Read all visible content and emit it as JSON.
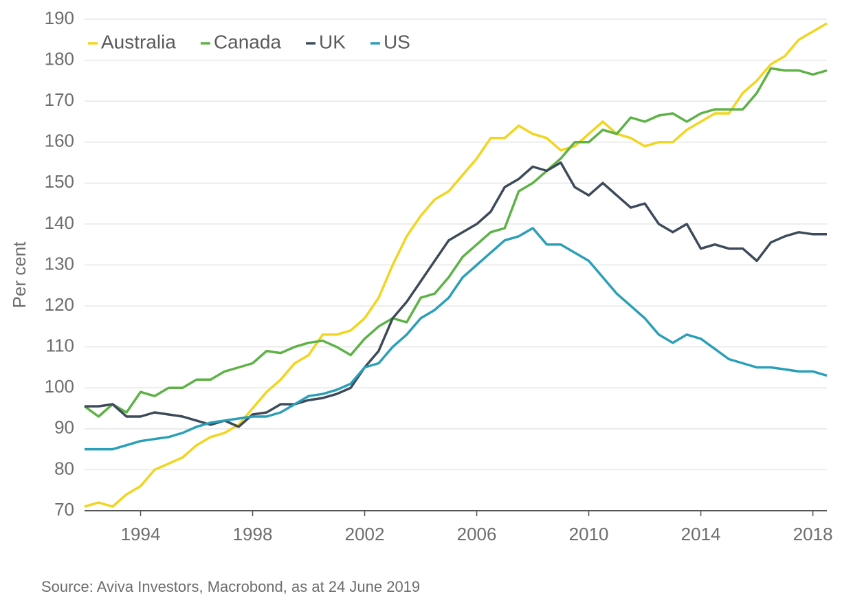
{
  "chart_data": {
    "type": "line",
    "y_label": "Per cent",
    "source": "Source: Aviva Investors, Macrobond, as at 24 June 2019",
    "x": [
      1992,
      1992.5,
      1993,
      1993.5,
      1994,
      1994.5,
      1995,
      1995.5,
      1996,
      1996.5,
      1997,
      1997.5,
      1998,
      1998.5,
      1999,
      1999.5,
      2000,
      2000.5,
      2001,
      2001.5,
      2002,
      2002.5,
      2003,
      2003.5,
      2004,
      2004.5,
      2005,
      2005.5,
      2006,
      2006.5,
      2007,
      2007.5,
      2008,
      2008.5,
      2009,
      2009.5,
      2010,
      2010.5,
      2011,
      2011.5,
      2012,
      2012.5,
      2013,
      2013.5,
      2014,
      2014.5,
      2015,
      2015.5,
      2016,
      2016.5,
      2017,
      2017.5,
      2018,
      2018.5
    ],
    "series": [
      {
        "name": "Australia",
        "color": "#f2d51e",
        "values": [
          71,
          72,
          71,
          74,
          76,
          80,
          81.5,
          83,
          86,
          88,
          89,
          91,
          95,
          99,
          102,
          106,
          108,
          113,
          113,
          114,
          117,
          122,
          130,
          137,
          142,
          146,
          148,
          152,
          156,
          161,
          161,
          164,
          162,
          161,
          158,
          159,
          162,
          165,
          162,
          161,
          159,
          160,
          160,
          163,
          165,
          167,
          167,
          172,
          175,
          179,
          181,
          185,
          187,
          189
        ]
      },
      {
        "name": "Canada",
        "color": "#5db246",
        "values": [
          95.5,
          93,
          96,
          94,
          99,
          98,
          100,
          100,
          102,
          102,
          104,
          105,
          106,
          109,
          108.5,
          110,
          111,
          111.5,
          110,
          108,
          112,
          115,
          117,
          116,
          122,
          123,
          127,
          132,
          135,
          138,
          139,
          148,
          150,
          153,
          156,
          160,
          160,
          163,
          162,
          166,
          165,
          166.5,
          167,
          165,
          167,
          168,
          168,
          168,
          172,
          178,
          177.5,
          177.5,
          176.5,
          177.5
        ]
      },
      {
        "name": "UK",
        "color": "#3d4a5a",
        "values": [
          95.5,
          95.5,
          96,
          93,
          93,
          94,
          93.5,
          93,
          92,
          91,
          92,
          90.5,
          93.5,
          94,
          96,
          96,
          97,
          97.5,
          98.5,
          100,
          105,
          109,
          117,
          121,
          126,
          131,
          136,
          138,
          140,
          143,
          149,
          151,
          154,
          153,
          155,
          149,
          147,
          150,
          147,
          144,
          145,
          140,
          138,
          140,
          134,
          135,
          134,
          134,
          131,
          135.5,
          137,
          138,
          137.5,
          137.5
        ]
      },
      {
        "name": "US",
        "color": "#2a9fb8",
        "values": [
          85,
          85,
          85,
          86,
          87,
          87.5,
          88,
          89,
          90.5,
          91.5,
          92,
          92.5,
          93,
          93,
          94,
          96,
          98,
          98.5,
          99.5,
          101,
          105,
          106,
          110,
          113,
          117,
          119,
          122,
          127,
          130,
          133,
          136,
          137,
          139,
          135,
          135,
          133,
          131,
          127,
          123,
          120,
          117,
          113,
          111,
          113,
          112,
          109.5,
          107,
          106,
          105,
          105,
          104.5,
          104,
          104,
          103
        ]
      }
    ],
    "xlim": [
      1992,
      2018.5
    ],
    "xticks": [
      1994,
      1998,
      2002,
      2006,
      2010,
      2014,
      2018
    ],
    "ylim": [
      70,
      190
    ],
    "yticks": [
      70,
      80,
      90,
      100,
      110,
      120,
      130,
      140,
      150,
      160,
      170,
      180,
      190
    ],
    "grid": true,
    "legend": "top-left"
  }
}
